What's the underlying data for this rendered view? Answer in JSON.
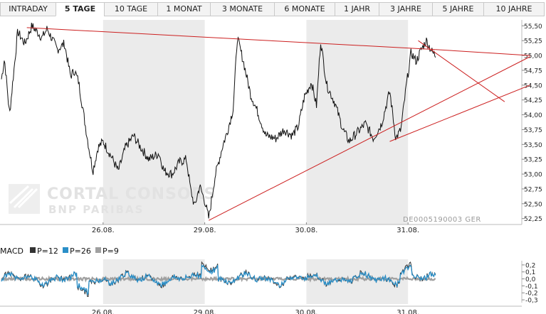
{
  "tabs": [
    {
      "label": "INTRADAY",
      "active": false
    },
    {
      "label": "5 TAGE",
      "active": true
    },
    {
      "label": "10 TAGE",
      "active": false
    },
    {
      "label": "1 MONAT",
      "active": false
    },
    {
      "label": "3 MONATE",
      "active": false
    },
    {
      "label": "6 MONATE",
      "active": false
    },
    {
      "label": "1 JAHR",
      "active": false
    },
    {
      "label": "3 JAHRE",
      "active": false
    },
    {
      "label": "5 JAHRE",
      "active": false
    },
    {
      "label": "10 JAHRE",
      "active": false
    }
  ],
  "watermark": {
    "line1": "CORTAL CONSORS",
    "line2": "BNP PARIBAS"
  },
  "isin": "DE0005190003 GER",
  "colors": {
    "price": "#111111",
    "trend": "#cc1f1f",
    "shade": "#ebebeb",
    "macd": "#333333",
    "p26": "#2a8fc8",
    "p9": "#a0a0a0"
  },
  "chart_data": [
    {
      "type": "line",
      "title": "",
      "xlabel": "",
      "ylabel": "",
      "x_labels": [
        "26.08.",
        "29.08.",
        "30.08.",
        "31.08."
      ],
      "yticks": [
        "55,50",
        "55,25",
        "55,00",
        "54,75",
        "54,50",
        "54,25",
        "54,00",
        "53,75",
        "53,50",
        "53,25",
        "53,00",
        "52,75",
        "52,50",
        "52,25"
      ],
      "ylim": [
        52.15,
        55.6
      ],
      "x_range": [
        0,
        5
      ],
      "shaded_days": [
        [
          1,
          2
        ],
        [
          3,
          4
        ]
      ],
      "price_anchors": [
        [
          0.0,
          54.6
        ],
        [
          0.03,
          54.95
        ],
        [
          0.08,
          54.0
        ],
        [
          0.16,
          55.4
        ],
        [
          0.23,
          55.2
        ],
        [
          0.3,
          55.5
        ],
        [
          0.4,
          55.3
        ],
        [
          0.45,
          55.45
        ],
        [
          0.55,
          55.1
        ],
        [
          0.62,
          55.2
        ],
        [
          0.68,
          54.65
        ],
        [
          0.72,
          54.75
        ],
        [
          0.76,
          54.55
        ],
        [
          0.85,
          53.55
        ],
        [
          0.9,
          53.05
        ],
        [
          0.95,
          53.45
        ],
        [
          1.0,
          53.55
        ],
        [
          1.08,
          53.3
        ],
        [
          1.15,
          53.05
        ],
        [
          1.22,
          53.45
        ],
        [
          1.3,
          53.65
        ],
        [
          1.35,
          53.5
        ],
        [
          1.45,
          53.25
        ],
        [
          1.55,
          53.35
        ],
        [
          1.6,
          53.05
        ],
        [
          1.68,
          53.0
        ],
        [
          1.75,
          53.2
        ],
        [
          1.82,
          53.25
        ],
        [
          1.86,
          52.75
        ],
        [
          1.9,
          52.45
        ],
        [
          1.95,
          52.8
        ],
        [
          2.0,
          52.55
        ],
        [
          2.04,
          52.25
        ],
        [
          2.1,
          52.95
        ],
        [
          2.18,
          53.5
        ],
        [
          2.22,
          53.7
        ],
        [
          2.28,
          54.1
        ],
        [
          2.32,
          55.3
        ],
        [
          2.38,
          54.9
        ],
        [
          2.45,
          54.35
        ],
        [
          2.52,
          54.05
        ],
        [
          2.6,
          53.65
        ],
        [
          2.7,
          53.6
        ],
        [
          2.78,
          53.75
        ],
        [
          2.86,
          53.65
        ],
        [
          2.92,
          53.8
        ],
        [
          2.98,
          54.3
        ],
        [
          3.05,
          54.55
        ],
        [
          3.1,
          54.15
        ],
        [
          3.14,
          55.25
        ],
        [
          3.2,
          54.5
        ],
        [
          3.28,
          54.2
        ],
        [
          3.36,
          53.75
        ],
        [
          3.42,
          53.55
        ],
        [
          3.5,
          53.7
        ],
        [
          3.58,
          53.85
        ],
        [
          3.66,
          53.6
        ],
        [
          3.74,
          53.85
        ],
        [
          3.82,
          54.4
        ],
        [
          3.88,
          53.6
        ],
        [
          3.93,
          53.75
        ],
        [
          3.98,
          54.45
        ],
        [
          4.03,
          55.05
        ],
        [
          4.08,
          54.9
        ],
        [
          4.13,
          55.1
        ],
        [
          4.18,
          55.25
        ],
        [
          4.24,
          55.05
        ],
        [
          4.27,
          55.0
        ]
      ],
      "trendlines": [
        {
          "from": [
            0.25,
            55.47
          ],
          "to": [
            4.27,
            55.1
          ]
        },
        {
          "from": [
            4.27,
            55.1
          ],
          "to": [
            5.2,
            55.0
          ]
        },
        {
          "from": [
            2.04,
            52.22
          ],
          "to": [
            5.2,
            54.98
          ]
        },
        {
          "from": [
            3.82,
            53.55
          ],
          "to": [
            5.2,
            54.5
          ]
        },
        {
          "from": [
            4.1,
            55.25
          ],
          "to": [
            4.95,
            54.22
          ]
        }
      ]
    },
    {
      "type": "line",
      "title": "",
      "legend": [
        {
          "name": "MACD",
          "color": "#333333"
        },
        {
          "name": "P=12",
          "color": "#333333"
        },
        {
          "name": "P=26",
          "color": "#2a8fc8"
        },
        {
          "name": "P=9",
          "color": "#a0a0a0"
        }
      ],
      "yticks": [
        "0,2",
        "0,1",
        "0,0",
        "-0,1",
        "-0,2",
        "-0,3"
      ],
      "ylim": [
        -0.34,
        0.26
      ],
      "x_labels": [
        "26.08.",
        "29.08.",
        "30.08.",
        "31.08."
      ],
      "x_range": [
        0,
        5
      ],
      "shaded_days": [
        [
          1,
          2
        ],
        [
          3,
          4
        ]
      ]
    }
  ]
}
